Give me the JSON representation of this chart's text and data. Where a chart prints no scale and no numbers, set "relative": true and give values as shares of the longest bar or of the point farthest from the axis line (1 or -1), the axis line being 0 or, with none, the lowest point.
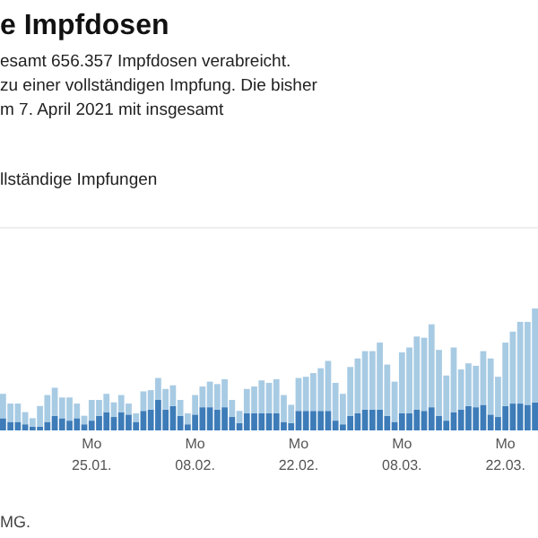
{
  "chart_data": {
    "type": "bar",
    "title": "e Impfdosen",
    "subtitle": "esamt 656.357 Impfdosen verabreicht.\nzu einer vollständigen Impfung. Die bisher\nm 7. April 2021 mit insgesamt",
    "annotations": [
      "MG."
    ],
    "relative": true,
    "stacked": true,
    "legend": "top left",
    "categories": [
      null,
      null,
      null,
      null,
      null,
      null,
      null,
      null,
      null,
      null,
      null,
      null,
      "Mo 25.01.",
      null,
      null,
      null,
      null,
      null,
      null,
      null,
      null,
      null,
      null,
      null,
      null,
      null,
      "Mo 08.02.",
      null,
      null,
      null,
      null,
      null,
      null,
      null,
      null,
      null,
      null,
      null,
      null,
      null,
      "Mo 22.02.",
      null,
      null,
      null,
      null,
      null,
      null,
      null,
      null,
      null,
      null,
      null,
      null,
      null,
      "Mo 08.03.",
      null,
      null,
      null,
      null,
      null,
      null,
      null,
      null,
      null,
      null,
      null,
      null,
      null,
      "Mo 22.03.",
      null,
      null,
      null,
      null
    ],
    "series": [
      {
        "name": "llständige Impfungen",
        "color": "#3d7cb8",
        "values": [
          0.1,
          0.07,
          0.07,
          0.05,
          0.03,
          0.03,
          0.07,
          0.12,
          0.1,
          0.08,
          0.1,
          0.05,
          0.08,
          0.12,
          0.15,
          0.11,
          0.15,
          0.13,
          0.07,
          0.16,
          0.17,
          0.25,
          0.17,
          0.2,
          0.12,
          0.05,
          0.13,
          0.19,
          0.19,
          0.17,
          0.19,
          0.11,
          0.06,
          0.14,
          0.14,
          0.14,
          0.14,
          0.14,
          0.07,
          0.06,
          0.16,
          0.16,
          0.16,
          0.16,
          0.16,
          0.08,
          0.05,
          0.12,
          0.14,
          0.17,
          0.17,
          0.17,
          0.12,
          0.07,
          0.14,
          0.14,
          0.17,
          0.16,
          0.19,
          0.12,
          0.08,
          0.15,
          0.17,
          0.2,
          0.19,
          0.21,
          0.13,
          0.11,
          0.2,
          0.22,
          0.22,
          0.21,
          0.23
        ]
      },
      {
        "color": "#a8cbe4",
        "values": [
          0.2,
          0.15,
          0.15,
          0.1,
          0.07,
          0.17,
          0.22,
          0.23,
          0.17,
          0.19,
          0.12,
          0.07,
          0.17,
          0.13,
          0.15,
          0.12,
          0.14,
          0.09,
          0.07,
          0.16,
          0.16,
          0.18,
          0.17,
          0.17,
          0.13,
          0.09,
          0.16,
          0.17,
          0.21,
          0.21,
          0.23,
          0.14,
          0.1,
          0.2,
          0.22,
          0.27,
          0.25,
          0.28,
          0.22,
          0.15,
          0.27,
          0.28,
          0.31,
          0.35,
          0.41,
          0.31,
          0.25,
          0.4,
          0.45,
          0.48,
          0.48,
          0.55,
          0.42,
          0.33,
          0.5,
          0.54,
          0.6,
          0.6,
          0.68,
          0.54,
          0.37,
          0.53,
          0.33,
          0.35,
          0.34,
          0.44,
          0.46,
          0.33,
          0.52,
          0.59,
          0.67,
          0.68,
          0.77
        ]
      }
    ]
  }
}
